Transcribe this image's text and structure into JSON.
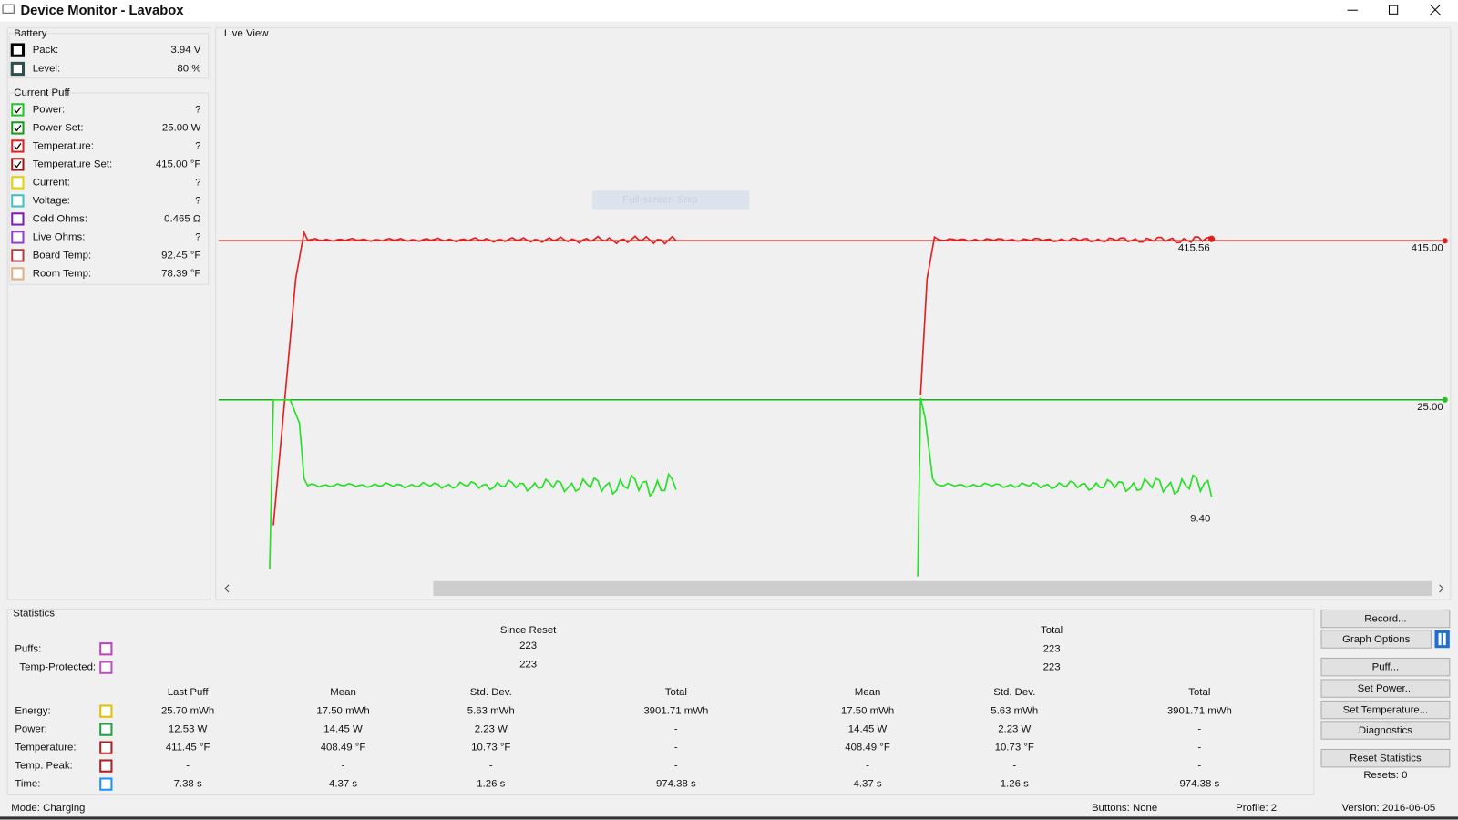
{
  "window": {
    "title": "Device Monitor - Lavabox"
  },
  "battery": {
    "title": "Battery",
    "rows": [
      {
        "label": "Pack:",
        "value": "3.94 V",
        "color": "#000000",
        "checked": false
      },
      {
        "label": "Level:",
        "value": "80 %",
        "color": "#2f4f4f",
        "checked": false
      }
    ]
  },
  "current_puff": {
    "title": "Current Puff",
    "rows": [
      {
        "label": "Power:",
        "value": "?",
        "color": "#22c322",
        "checked": true
      },
      {
        "label": "Power Set:",
        "value": "25.00 W",
        "color": "#1a9a1a",
        "checked": true
      },
      {
        "label": "Temperature:",
        "value": "?",
        "color": "#e02020",
        "checked": true
      },
      {
        "label": "Temperature Set:",
        "value": "415.00 °F",
        "color": "#a01515",
        "checked": true
      },
      {
        "label": "Current:",
        "value": "?",
        "color": "#e0d000",
        "checked": false
      },
      {
        "label": "Voltage:",
        "value": "?",
        "color": "#40c0c0",
        "checked": false
      },
      {
        "label": "Cold Ohms:",
        "value": "0.465 Ω",
        "color": "#7a1fb8",
        "checked": false
      },
      {
        "label": "Live Ohms:",
        "value": "?",
        "color": "#9040d0",
        "checked": false
      },
      {
        "label": "Board Temp:",
        "value": "92.45 °F",
        "color": "#b04040",
        "checked": false
      },
      {
        "label": "Room Temp:",
        "value": "78.39 °F",
        "color": "#e0b080",
        "checked": false
      }
    ]
  },
  "live_view": {
    "title": "Live View",
    "watermark": "Full-screen Snip",
    "temp_set_label": "415.00",
    "power_set_label": "25.00",
    "temp_live_label": "415.56",
    "power_live_label": "9.40"
  },
  "statistics": {
    "title": "Statistics",
    "since_reset": "Since Reset",
    "total": "Total",
    "counters": [
      {
        "label": "Puffs:",
        "color": "#c040c0",
        "since_reset": "223",
        "total": "223"
      },
      {
        "label": "Temp-Protected:",
        "color": "#c050c0",
        "since_reset": "223",
        "total": "223"
      }
    ],
    "columns": [
      "Last Puff",
      "Mean",
      "Std. Dev.",
      "Total",
      "Mean",
      "Std. Dev.",
      "Total"
    ],
    "rows": [
      {
        "label": "Energy:",
        "color": "#e0c000",
        "cells": [
          "25.70 mWh",
          "17.50 mWh",
          "5.63 mWh",
          "3901.71 mWh",
          "17.50 mWh",
          "5.63 mWh",
          "3901.71 mWh"
        ]
      },
      {
        "label": "Power:",
        "color": "#20a040",
        "cells": [
          "12.53 W",
          "14.45 W",
          "2.23 W",
          "-",
          "14.45 W",
          "2.23 W",
          "-"
        ]
      },
      {
        "label": "Temperature:",
        "color": "#b02020",
        "cells": [
          "411.45 °F",
          "408.49 °F",
          "10.73 °F",
          "-",
          "408.49 °F",
          "10.73 °F",
          "-"
        ]
      },
      {
        "label": "Temp. Peak:",
        "color": "#b02020",
        "cells": [
          "-",
          "-",
          "-",
          "-",
          "-",
          "-",
          "-"
        ]
      },
      {
        "label": "Time:",
        "color": "#1e90ff",
        "cells": [
          "7.38 s",
          "4.37 s",
          "1.26 s",
          "974.38 s",
          "4.37 s",
          "1.26 s",
          "974.38 s"
        ]
      }
    ]
  },
  "buttons": [
    "Record...",
    "Graph Options",
    "Puff...",
    "Set Power...",
    "Set Temperature...",
    "Diagnostics",
    "Reset Statistics"
  ],
  "resets": "Resets: 0",
  "status": {
    "mode": "Mode: Charging",
    "buttons": "Buttons: None",
    "profile": "Profile: 2",
    "version": "Version: 2016-06-05"
  }
}
